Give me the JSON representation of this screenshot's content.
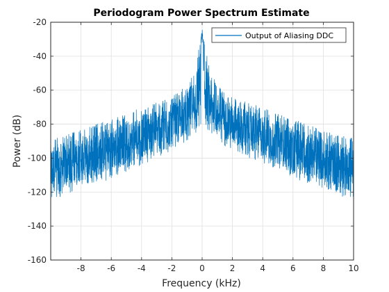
{
  "chart_data": {
    "type": "line",
    "title": "Periodogram Power Spectrum Estimate",
    "xlabel": "Frequency (kHz)",
    "ylabel": "Power (dB)",
    "xlim": [
      -10,
      10
    ],
    "ylim": [
      -160,
      -20
    ],
    "xticks": [
      -8,
      -6,
      -4,
      -2,
      0,
      2,
      4,
      6,
      8,
      10
    ],
    "yticks": [
      -20,
      -40,
      -60,
      -80,
      -100,
      -120,
      -140,
      -160
    ],
    "grid": true,
    "legend_position": "top-right",
    "series": [
      {
        "name": "Output of Aliasing DDC",
        "color": "#0072BD",
        "description": "dense noisy spectrum; values are the approximate envelope",
        "x": [
          -10,
          -9,
          -8,
          -7,
          -6,
          -5,
          -4,
          -3,
          -2,
          -1,
          -0.5,
          0,
          0.5,
          1,
          2,
          3,
          4,
          5,
          6,
          7,
          8,
          9,
          10
        ],
        "upper": [
          -88,
          -86,
          -83,
          -80,
          -77,
          -74,
          -70,
          -67,
          -64,
          -57,
          -48,
          -24,
          -48,
          -57,
          -64,
          -67,
          -70,
          -74,
          -77,
          -80,
          -83,
          -86,
          -88
        ],
        "lower": [
          -125,
          -122,
          -118,
          -116,
          -112,
          -108,
          -104,
          -100,
          -96,
          -90,
          -86,
          -82,
          -86,
          -90,
          -96,
          -100,
          -104,
          -108,
          -112,
          -116,
          -118,
          -122,
          -125
        ]
      }
    ]
  }
}
